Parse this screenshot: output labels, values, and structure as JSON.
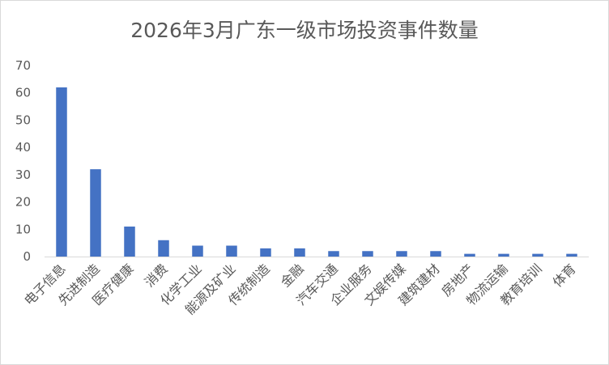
{
  "chart_data": {
    "type": "bar",
    "title": "2026年3月广东一级市场投资事件数量",
    "categories": [
      "电子信息",
      "先进制造",
      "医疗健康",
      "消费",
      "化学工业",
      "能源及矿业",
      "传统制造",
      "金融",
      "汽车交通",
      "企业服务",
      "文娱传媒",
      "建筑建材",
      "房地产",
      "物流运输",
      "教育培训",
      "体育"
    ],
    "values": [
      62,
      32,
      11,
      6,
      4,
      4,
      3,
      3,
      2,
      2,
      2,
      2,
      1,
      1,
      1,
      1
    ],
    "ylim": [
      0,
      70
    ],
    "yticks": [
      0,
      10,
      20,
      30,
      40,
      50,
      60,
      70
    ],
    "grid": false,
    "legend": "none",
    "bar_color": "#4472c4",
    "axis_color": "#d9d9d9"
  }
}
